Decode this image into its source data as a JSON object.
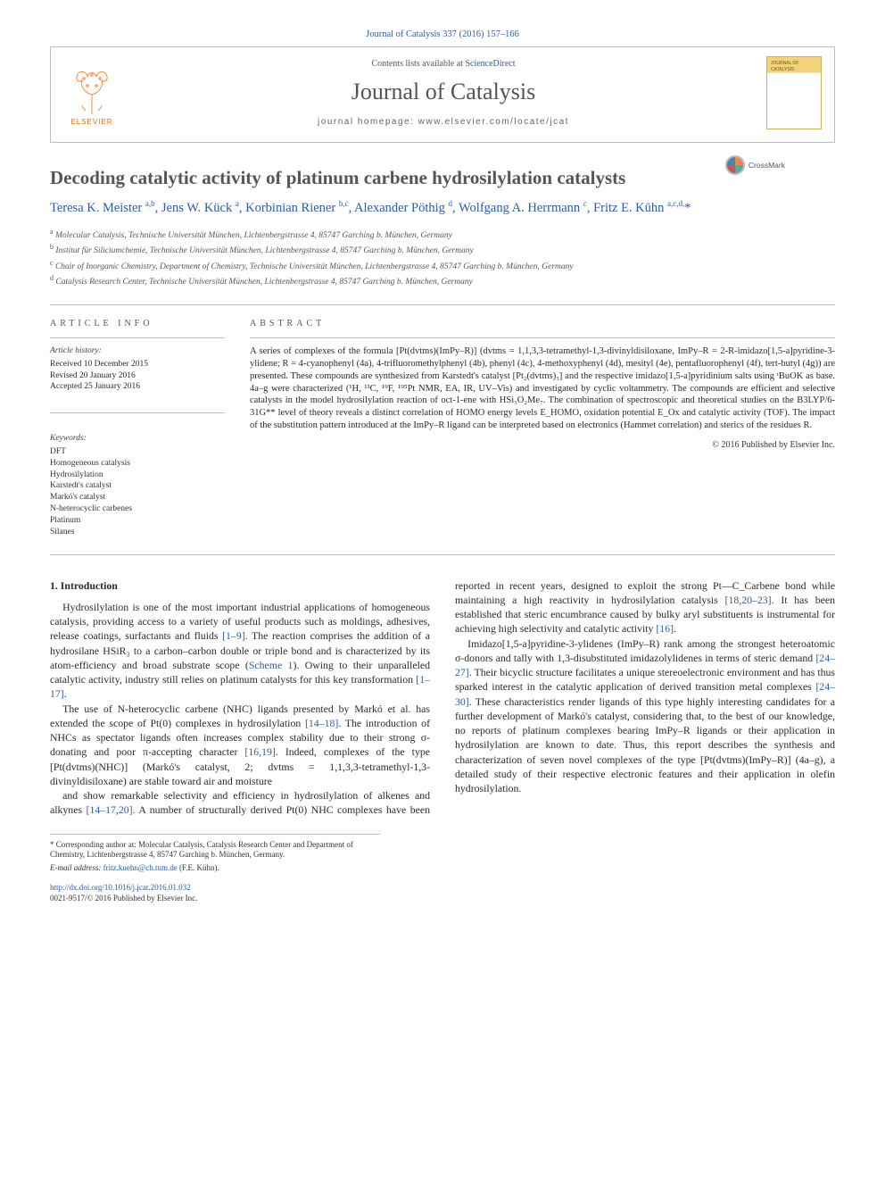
{
  "citation": "Journal of Catalysis 337 (2016) 157–166",
  "header": {
    "contents_prefix": "Contents lists available at ",
    "contents_link": "ScienceDirect",
    "journal_name": "Journal of Catalysis",
    "homepage_prefix": "journal homepage: ",
    "homepage_url": "www.elsevier.com/locate/jcat",
    "publisher_logo_text": "ELSEVIER",
    "cover_text": "JOURNAL OF CATALYSIS"
  },
  "crossmark_label": "CrossMark",
  "article": {
    "title": "Decoding catalytic activity of platinum carbene hydrosilylation catalysts",
    "authors_html": "Teresa K. Meister <sup>a,b</sup>, Jens W. Kück <sup>a</sup>, Korbinian Riener <sup>b,c</sup>, Alexander Pöthig <sup>d</sup>, Wolfgang A. Herrmann <sup>c</sup>, Fritz E. Kühn <sup>a,c,d,</sup><span class='corr'>*</span>",
    "affiliations": [
      "Molecular Catalysis, Technische Universität München, Lichtenbergstrasse 4, 85747 Garching b. München, Germany",
      "Institut für Siliciumchemie, Technische Universität München, Lichtenbergstrasse 4, 85747 Garching b. München, Germany",
      "Chair of Inorganic Chemistry, Department of Chemistry, Technische Universität München, Lichtenbergstrasse 4, 85747 Garching b. München, Germany",
      "Catalysis Research Center, Technische Universität München, Lichtenbergstrasse 4, 85747 Garching b. München, Germany"
    ],
    "aff_markers": [
      "a",
      "b",
      "c",
      "d"
    ]
  },
  "info": {
    "heading": "ARTICLE INFO",
    "history_label": "Article history:",
    "received": "Received 10 December 2015",
    "revised": "Revised 20 January 2016",
    "accepted": "Accepted 25 January 2016",
    "keywords_label": "Keywords:",
    "keywords": [
      "DFT",
      "Homogeneous catalysis",
      "Hydrosilylation",
      "Karstedt's catalyst",
      "Markó's catalyst",
      "N-heterocyclic carbenes",
      "Platinum",
      "Silanes"
    ]
  },
  "abstract": {
    "heading": "ABSTRACT",
    "text": "A series of complexes of the formula [Pt(dvtms)(ImPy–R)] (dvtms = 1,1,3,3-tetramethyl-1,3-divinyldisiloxane, ImPy–R = 2-R-imidazo[1,5-a]pyridine-3-ylidene; R = 4-cyanophenyl (4a), 4-trifluoromethylphenyl (4b), phenyl (4c), 4-methoxyphenyl (4d), mesityl (4e), pentafluorophenyl (4f), tert-butyl (4g)) are presented. These compounds are synthesized from Karstedt's catalyst [Pt₂(dvtms)₃] and the respective imidazo[1,5-a]pyridinium salts using ᵗBuOK as base. 4a–g were characterized (¹H, ¹³C, ¹⁹F, ¹⁹⁵Pt NMR, EA, IR, UV–Vis) and investigated by cyclic voltammetry. The compounds are efficient and selective catalysts in the model hydrosilylation reaction of oct-1-ene with HSi₃O₂Me₇. The combination of spectroscopic and theoretical studies on the B3LYP/6-31G** level of theory reveals a distinct correlation of HOMO energy levels E_HOMO, oxidation potential E_Ox and catalytic activity (TOF). The impact of the substitution pattern introduced at the ImPy–R ligand can be interpreted based on electronics (Hammet correlation) and sterics of the residues R.",
    "copyright": "© 2016 Published by Elsevier Inc."
  },
  "body": {
    "sec1_heading": "1. Introduction",
    "p1": "Hydrosilylation is one of the most important industrial applications of homogeneous catalysis, providing access to a variety of useful products such as moldings, adhesives, release coatings, surfactants and fluids [1–9]. The reaction comprises the addition of a hydrosilane HSiR₃ to a carbon–carbon double or triple bond and is characterized by its atom-efficiency and broad substrate scope (Scheme 1). Owing to their unparalleled catalytic activity, industry still relies on platinum catalysts for this key transformation [1–17].",
    "p2": "The use of N-heterocyclic carbene (NHC) ligands presented by Markó et al. has extended the scope of Pt(0) complexes in hydrosilylation [14–18]. The introduction of NHCs as spectator ligands often increases complex stability due to their strong σ-donating and poor π-accepting character [16,19]. Indeed, complexes of the type [Pt(dvtms)(NHC)] (Markó's catalyst, 2; dvtms = 1,1,3,3-tetramethyl-1,3-divinyldisiloxane) are stable toward air and moisture",
    "p3": "and show remarkable selectivity and efficiency in hydrosilylation of alkenes and alkynes [14–17,20]. A number of structurally derived Pt(0) NHC complexes have been reported in recent years, designed to exploit the strong Pt—C_Carbene bond while maintaining a high reactivity in hydrosilylation catalysis [18,20–23]. It has been established that steric encumbrance caused by bulky aryl substituents is instrumental for achieving high selectivity and catalytic activity [16].",
    "p4": "Imidazo[1,5-a]pyridine-3-ylidenes (ImPy–R) rank among the strongest heteroatomic σ-donors and tally with 1,3-disubstituted imidazolylidenes in terms of steric demand [24–27]. Their bicyclic structure facilitates a unique stereoelectronic environment and has thus sparked interest in the catalytic application of derived transition metal complexes [24–30]. These characteristics render ligands of this type highly interesting candidates for a further development of Markó's catalyst, considering that, to the best of our knowledge, no reports of platinum complexes bearing ImPy–R ligands or their application in hydrosilylation are known to date. Thus, this report describes the synthesis and characterization of seven novel complexes of the type [Pt(dvtms)(ImPy–R)] (4a–g), a detailed study of their respective electronic features and their application in olefin hydrosilylation."
  },
  "footer": {
    "corresp": "* Corresponding author at: Molecular Catalysis, Catalysis Research Center and Department of Chemistry, Lichtenbergstrasse 4, 85747 Garching b. München, Germany.",
    "email_label": "E-mail address: ",
    "email": "fritz.kuehn@ch.tum.de",
    "email_person": " (F.E. Kühn).",
    "doi_prefix": "http://dx.doi.org/",
    "doi": "10.1016/j.jcat.2016.01.032",
    "issn_line": "0021-9517/© 2016 Published by Elsevier Inc."
  },
  "colors": {
    "link": "#2a5ca8",
    "text": "#2a2a2a",
    "muted": "#555555",
    "rule": "#bfbfbf",
    "elsevier_orange": "#ff6b00"
  }
}
